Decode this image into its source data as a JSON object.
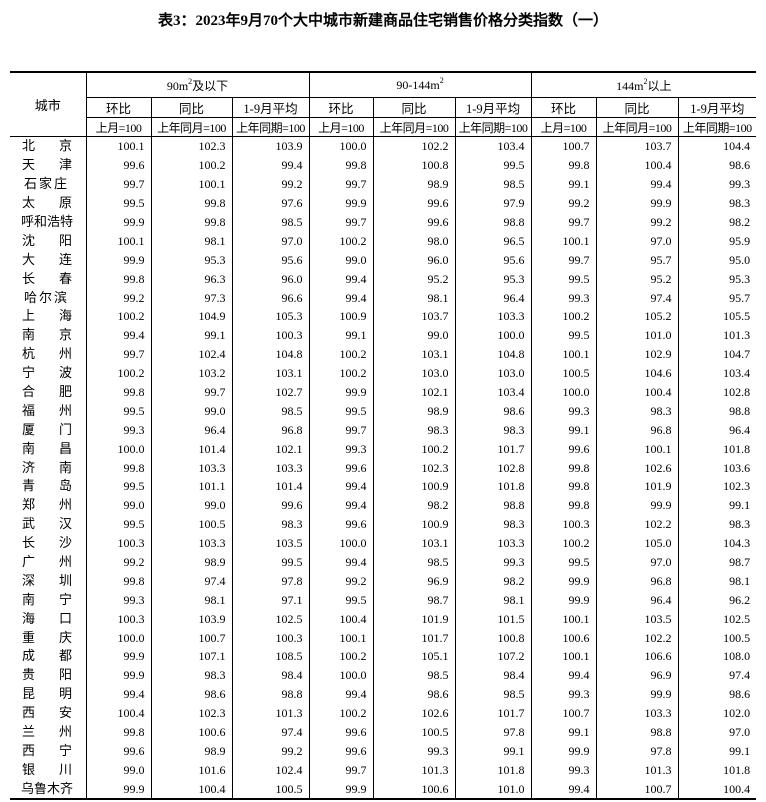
{
  "title": "表3：2023年9月70个大中城市新建商品住宅销售价格分类指数（一）",
  "header": {
    "city": "城市",
    "groups": [
      {
        "prefix": "90m",
        "sup": "2",
        "suffix": "及以下"
      },
      {
        "prefix": "90-144m",
        "sup": "2",
        "suffix": ""
      },
      {
        "prefix": "144m",
        "sup": "2",
        "suffix": "以上"
      }
    ],
    "sub": [
      "环比",
      "同比",
      "1-9月平均"
    ],
    "base": [
      "上月=100",
      "上年同月=100",
      "上年同期=100"
    ]
  },
  "rows": [
    [
      "北京",
      "100.1",
      "102.3",
      "103.9",
      "100.0",
      "102.2",
      "103.4",
      "100.7",
      "103.7",
      "104.4"
    ],
    [
      "天津",
      "99.6",
      "100.2",
      "99.4",
      "99.8",
      "100.8",
      "99.5",
      "99.8",
      "100.4",
      "98.6"
    ],
    [
      "石家庄",
      "99.7",
      "100.1",
      "99.2",
      "99.7",
      "98.9",
      "98.5",
      "99.1",
      "99.4",
      "99.3"
    ],
    [
      "太原",
      "99.5",
      "99.8",
      "97.6",
      "99.9",
      "99.6",
      "97.9",
      "99.2",
      "99.9",
      "98.3"
    ],
    [
      "呼和浩特",
      "99.9",
      "99.8",
      "98.5",
      "99.7",
      "99.6",
      "98.8",
      "99.7",
      "99.2",
      "98.2"
    ],
    [
      "沈阳",
      "100.1",
      "98.1",
      "97.0",
      "100.2",
      "98.0",
      "96.5",
      "100.1",
      "97.0",
      "95.9"
    ],
    [
      "大连",
      "99.9",
      "95.3",
      "95.6",
      "99.0",
      "96.0",
      "95.6",
      "99.7",
      "95.7",
      "95.0"
    ],
    [
      "长春",
      "99.8",
      "96.3",
      "96.0",
      "99.4",
      "95.2",
      "95.3",
      "99.5",
      "95.2",
      "95.3"
    ],
    [
      "哈尔滨",
      "99.2",
      "97.3",
      "96.6",
      "99.4",
      "98.1",
      "96.4",
      "99.3",
      "97.4",
      "95.7"
    ],
    [
      "上海",
      "100.2",
      "104.9",
      "105.3",
      "100.9",
      "103.7",
      "103.3",
      "100.2",
      "105.2",
      "105.5"
    ],
    [
      "南京",
      "99.4",
      "99.1",
      "100.3",
      "99.1",
      "99.0",
      "100.0",
      "99.5",
      "101.0",
      "101.3"
    ],
    [
      "杭州",
      "99.7",
      "102.4",
      "104.8",
      "100.2",
      "103.1",
      "104.8",
      "100.1",
      "102.9",
      "104.7"
    ],
    [
      "宁波",
      "100.2",
      "103.2",
      "103.1",
      "100.2",
      "103.0",
      "103.0",
      "100.5",
      "104.6",
      "103.4"
    ],
    [
      "合肥",
      "99.8",
      "99.7",
      "102.7",
      "99.9",
      "102.1",
      "103.4",
      "100.0",
      "100.4",
      "102.8"
    ],
    [
      "福州",
      "99.5",
      "99.0",
      "98.5",
      "99.5",
      "98.9",
      "98.6",
      "99.3",
      "98.3",
      "98.8"
    ],
    [
      "厦门",
      "99.3",
      "96.4",
      "96.8",
      "99.7",
      "98.3",
      "98.3",
      "99.1",
      "96.8",
      "96.4"
    ],
    [
      "南昌",
      "100.0",
      "101.4",
      "102.1",
      "99.3",
      "100.2",
      "101.7",
      "99.6",
      "100.1",
      "101.8"
    ],
    [
      "济南",
      "99.8",
      "103.3",
      "103.3",
      "99.6",
      "102.3",
      "102.8",
      "99.8",
      "102.6",
      "103.6"
    ],
    [
      "青岛",
      "99.5",
      "101.1",
      "101.4",
      "99.4",
      "100.9",
      "101.8",
      "99.8",
      "101.9",
      "102.3"
    ],
    [
      "郑州",
      "99.0",
      "99.0",
      "99.6",
      "99.4",
      "98.2",
      "98.8",
      "99.8",
      "99.9",
      "99.1"
    ],
    [
      "武汉",
      "99.5",
      "100.5",
      "98.3",
      "99.6",
      "100.9",
      "98.3",
      "100.3",
      "102.2",
      "98.3"
    ],
    [
      "长沙",
      "100.3",
      "103.3",
      "103.5",
      "100.0",
      "103.1",
      "103.3",
      "100.2",
      "105.0",
      "104.3"
    ],
    [
      "广州",
      "99.2",
      "98.9",
      "99.5",
      "99.4",
      "98.5",
      "99.3",
      "99.5",
      "97.0",
      "98.7"
    ],
    [
      "深圳",
      "99.8",
      "97.4",
      "97.8",
      "99.2",
      "96.9",
      "98.2",
      "99.9",
      "96.8",
      "98.1"
    ],
    [
      "南宁",
      "99.3",
      "98.1",
      "97.1",
      "99.5",
      "98.7",
      "98.1",
      "99.9",
      "96.4",
      "96.2"
    ],
    [
      "海口",
      "100.3",
      "103.9",
      "102.5",
      "100.4",
      "101.9",
      "101.5",
      "100.1",
      "103.5",
      "102.5"
    ],
    [
      "重庆",
      "100.0",
      "100.7",
      "100.3",
      "100.1",
      "101.7",
      "100.8",
      "100.6",
      "102.2",
      "100.5"
    ],
    [
      "成都",
      "99.9",
      "107.1",
      "108.5",
      "100.2",
      "105.1",
      "107.2",
      "100.1",
      "106.6",
      "108.0"
    ],
    [
      "贵阳",
      "99.9",
      "98.3",
      "98.4",
      "100.0",
      "98.5",
      "98.4",
      "99.4",
      "96.9",
      "97.4"
    ],
    [
      "昆明",
      "99.4",
      "98.6",
      "98.8",
      "99.4",
      "98.6",
      "98.5",
      "99.3",
      "99.9",
      "98.6"
    ],
    [
      "西安",
      "100.4",
      "102.3",
      "101.3",
      "100.2",
      "102.6",
      "101.7",
      "100.7",
      "103.3",
      "102.0"
    ],
    [
      "兰州",
      "99.8",
      "100.6",
      "97.4",
      "99.6",
      "100.5",
      "97.8",
      "99.1",
      "98.8",
      "97.0"
    ],
    [
      "西宁",
      "99.6",
      "98.9",
      "99.2",
      "99.6",
      "99.3",
      "99.1",
      "99.9",
      "97.8",
      "99.1"
    ],
    [
      "银川",
      "99.0",
      "101.6",
      "102.4",
      "99.7",
      "101.3",
      "101.8",
      "99.3",
      "101.3",
      "101.8"
    ],
    [
      "乌鲁木齐",
      "99.9",
      "100.4",
      "100.5",
      "99.9",
      "100.6",
      "101.0",
      "99.4",
      "100.7",
      "100.4"
    ]
  ]
}
